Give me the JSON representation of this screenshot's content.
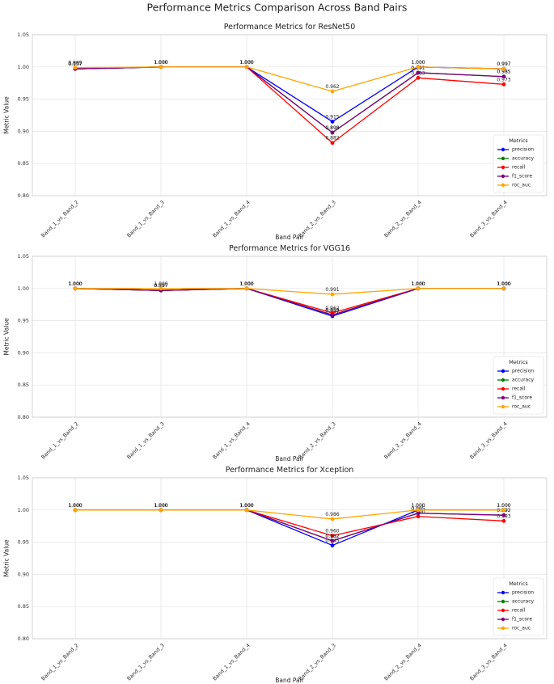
{
  "figure_title": "Performance Metrics Comparison Across Band Pairs",
  "colors": {
    "precision": "#0000ff",
    "accuracy": "#008000",
    "recall": "#ff0000",
    "f1_score": "#800080",
    "roc_auc": "#ffa500"
  },
  "chart_data": [
    {
      "type": "line",
      "title": "Performance Metrics for ResNet50",
      "xlabel": "Band Pair",
      "ylabel": "Metric Value",
      "ylim": [
        0.8,
        1.05
      ],
      "yticks": [
        "0.80",
        "0.85",
        "0.90",
        "0.95",
        "1.00",
        "1.05"
      ],
      "categories": [
        "Band_1_vs_Band_2",
        "Band_1_vs_Band_3",
        "Band_1_vs_Band_4",
        "Band_2_vs_Band_3",
        "Band_2_vs_Band_4",
        "Band_3_vs_Band_4"
      ],
      "legend_title": "Metrics",
      "legend_position": "lower-right",
      "series": [
        {
          "name": "precision",
          "values": [
            0.997,
            1.0,
            1.0,
            0.915,
            1.0,
            0.997
          ]
        },
        {
          "name": "accuracy",
          "values": [
            0.997,
            1.0,
            1.0,
            0.898,
            0.991,
            0.985
          ]
        },
        {
          "name": "recall",
          "values": [
            0.997,
            1.0,
            1.0,
            0.882,
            0.983,
            0.973
          ]
        },
        {
          "name": "f1_score",
          "values": [
            0.997,
            1.0,
            1.0,
            0.898,
            0.991,
            0.985
          ]
        },
        {
          "name": "roc_auc",
          "values": [
            0.999,
            1.0,
            1.0,
            0.962,
            1.0,
            0.997
          ]
        }
      ]
    },
    {
      "type": "line",
      "title": "Performance Metrics for VGG16",
      "xlabel": "Band Pair",
      "ylabel": "Metric Value",
      "ylim": [
        0.8,
        1.05
      ],
      "yticks": [
        "0.80",
        "0.85",
        "0.90",
        "0.95",
        "1.00",
        "1.05"
      ],
      "categories": [
        "Band_1_vs_Band_2",
        "Band_1_vs_Band_3",
        "Band_1_vs_Band_4",
        "Band_2_vs_Band_3",
        "Band_2_vs_Band_4",
        "Band_3_vs_Band_4"
      ],
      "legend_title": "Metrics",
      "legend_position": "lower-right",
      "series": [
        {
          "name": "precision",
          "values": [
            1.0,
            0.997,
            1.0,
            0.957,
            1.0,
            1.0
          ]
        },
        {
          "name": "accuracy",
          "values": [
            1.0,
            0.997,
            1.0,
            0.959,
            1.0,
            1.0
          ]
        },
        {
          "name": "recall",
          "values": [
            1.0,
            0.997,
            1.0,
            0.962,
            1.0,
            1.0
          ]
        },
        {
          "name": "f1_score",
          "values": [
            1.0,
            0.997,
            1.0,
            0.959,
            1.0,
            1.0
          ]
        },
        {
          "name": "roc_auc",
          "values": [
            1.0,
            1.0,
            1.0,
            0.991,
            1.0,
            1.0
          ]
        }
      ]
    },
    {
      "type": "line",
      "title": "Performance Metrics for Xception",
      "xlabel": "Band Pair",
      "ylabel": "Metric Value",
      "ylim": [
        0.8,
        1.05
      ],
      "yticks": [
        "0.80",
        "0.85",
        "0.90",
        "0.95",
        "1.00",
        "1.05"
      ],
      "categories": [
        "Band_1_vs_Band_2",
        "Band_1_vs_Band_3",
        "Band_1_vs_Band_4",
        "Band_2_vs_Band_3",
        "Band_2_vs_Band_4",
        "Band_3_vs_Band_4"
      ],
      "legend_title": "Metrics",
      "legend_position": "lower-right",
      "series": [
        {
          "name": "precision",
          "values": [
            1.0,
            1.0,
            1.0,
            0.945,
            1.0,
            1.0
          ]
        },
        {
          "name": "accuracy",
          "values": [
            1.0,
            1.0,
            1.0,
            0.952,
            0.995,
            0.992
          ]
        },
        {
          "name": "recall",
          "values": [
            1.0,
            1.0,
            1.0,
            0.96,
            0.99,
            0.983
          ]
        },
        {
          "name": "f1_score",
          "values": [
            1.0,
            1.0,
            1.0,
            0.952,
            0.995,
            0.992
          ]
        },
        {
          "name": "roc_auc",
          "values": [
            1.0,
            1.0,
            1.0,
            0.986,
            1.0,
            1.0
          ]
        }
      ]
    }
  ]
}
